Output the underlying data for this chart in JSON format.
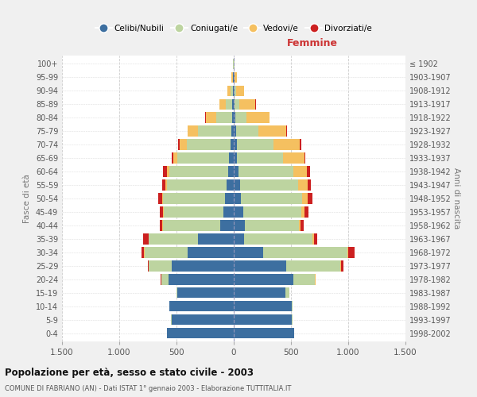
{
  "age_groups": [
    "0-4",
    "5-9",
    "10-14",
    "15-19",
    "20-24",
    "25-29",
    "30-34",
    "35-39",
    "40-44",
    "45-49",
    "50-54",
    "55-59",
    "60-64",
    "65-69",
    "70-74",
    "75-79",
    "80-84",
    "85-89",
    "90-94",
    "95-99",
    "100+"
  ],
  "birth_years": [
    "1998-2002",
    "1993-1997",
    "1988-1992",
    "1983-1987",
    "1978-1982",
    "1973-1977",
    "1968-1972",
    "1963-1967",
    "1958-1962",
    "1953-1957",
    "1948-1952",
    "1943-1947",
    "1938-1942",
    "1933-1937",
    "1928-1932",
    "1923-1927",
    "1918-1922",
    "1913-1917",
    "1908-1912",
    "1903-1907",
    "≤ 1902"
  ],
  "colors": {
    "celibi": "#3d6fa0",
    "coniugati": "#bdd4a0",
    "vedovi": "#f5c060",
    "divorziati": "#cc2020"
  },
  "males": {
    "celibi": [
      580,
      545,
      560,
      490,
      570,
      540,
      400,
      310,
      120,
      90,
      75,
      65,
      50,
      40,
      30,
      20,
      15,
      15,
      10,
      5,
      2
    ],
    "coniugati": [
      1,
      1,
      2,
      10,
      60,
      200,
      380,
      430,
      500,
      520,
      540,
      520,
      510,
      450,
      380,
      290,
      140,
      55,
      20,
      5,
      2
    ],
    "vedovi": [
      0,
      0,
      0,
      1,
      2,
      3,
      4,
      5,
      5,
      8,
      10,
      15,
      25,
      40,
      65,
      90,
      90,
      55,
      25,
      8,
      2
    ],
    "divorziati": [
      0,
      0,
      0,
      2,
      5,
      10,
      25,
      50,
      20,
      30,
      35,
      25,
      30,
      10,
      10,
      5,
      3,
      2,
      0,
      0,
      0
    ]
  },
  "females": {
    "nubili": [
      530,
      510,
      510,
      450,
      520,
      460,
      260,
      90,
      100,
      80,
      65,
      55,
      40,
      30,
      25,
      18,
      12,
      10,
      8,
      5,
      2
    ],
    "coniugati": [
      1,
      2,
      5,
      35,
      190,
      470,
      730,
      600,
      470,
      510,
      530,
      510,
      480,
      400,
      320,
      200,
      100,
      40,
      15,
      5,
      2
    ],
    "vedovi": [
      0,
      0,
      0,
      1,
      3,
      5,
      8,
      10,
      15,
      30,
      50,
      80,
      120,
      185,
      230,
      240,
      200,
      140,
      70,
      20,
      5
    ],
    "divorziati": [
      0,
      0,
      0,
      2,
      5,
      20,
      55,
      30,
      25,
      35,
      45,
      30,
      30,
      12,
      15,
      5,
      3,
      2,
      0,
      0,
      0
    ]
  },
  "title": "Popolazione per età, sesso e stato civile - 2003",
  "subtitle": "COMUNE DI FABRIANO (AN) - Dati ISTAT 1° gennaio 2003 - Elaborazione TUTTITALIA.IT",
  "xlabel_right": "Femmine",
  "ylabel_left": "Fasce di età",
  "ylabel_right": "Anni di nascita",
  "xlim": 1500,
  "xtick_labels": [
    "1.500",
    "1.000",
    "500",
    "0",
    "500",
    "1.000",
    "1.500"
  ],
  "legend_labels": [
    "Celibi/Nubili",
    "Coniugati/e",
    "Vedovi/e",
    "Divorziati/e"
  ],
  "bg_color": "#f0f0f0",
  "plot_bg_color": "#ffffff"
}
